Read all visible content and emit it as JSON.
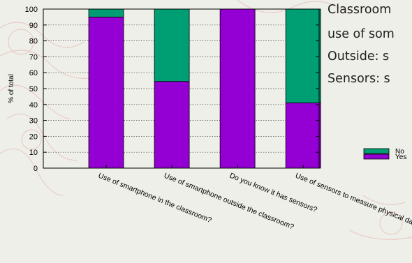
{
  "slide_text": {
    "line1": "Classroom",
    "line2": "use of som",
    "line3": "Outside: s",
    "line4": "Sensors: s"
  },
  "colors": {
    "background": "#efefe9",
    "decoration": "#e8c8c2",
    "yes": "#9400d3",
    "no": "#009e73"
  },
  "chart_data": {
    "type": "bar",
    "stacked": true,
    "ylabel": "% of total",
    "ylim": [
      0,
      100
    ],
    "yticks": [
      0,
      10,
      20,
      30,
      40,
      50,
      60,
      70,
      80,
      90,
      100
    ],
    "grid": true,
    "legend_placement": "right",
    "categories": [
      "Use of smartphone in the classroom?",
      "Use of smartphone outside the classroom?",
      "Do you know it has sensors?",
      "Use of sensors to measure physical data?"
    ],
    "series": [
      {
        "name": "Yes",
        "color": "#9400d3",
        "values": [
          95,
          54.5,
          100,
          41
        ]
      },
      {
        "name": "No",
        "color": "#009e73",
        "values": [
          5,
          45.5,
          0,
          59
        ]
      }
    ],
    "legend_order": [
      "No",
      "Yes"
    ]
  }
}
